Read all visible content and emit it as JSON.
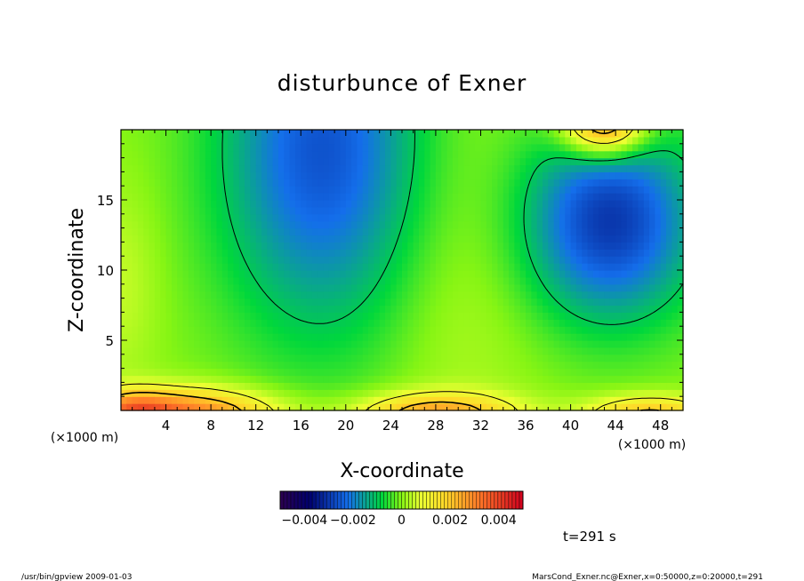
{
  "chart_data": {
    "type": "heatmap",
    "title": "disturbunce of Exner",
    "xlabel": "X-coordinate",
    "ylabel": "Z-coordinate",
    "x_unit": "(×1000 m)",
    "z_unit": "(×1000 m)",
    "xlim": [
      0,
      50
    ],
    "ylim": [
      0,
      20
    ],
    "x_ticks": [
      4,
      8,
      12,
      16,
      20,
      24,
      28,
      32,
      36,
      40,
      44,
      48
    ],
    "y_ticks": [
      5,
      10,
      15
    ],
    "colorbar": {
      "range": [
        -0.005,
        0.005
      ],
      "tick_values": [
        -0.004,
        -0.002,
        0,
        0.002,
        0.004
      ],
      "tick_labels": [
        "−0.004",
        "−0.002",
        "0",
        "0.002",
        "0.004"
      ]
    },
    "contour_levels": [
      -0.001,
      0.001,
      0.002
    ],
    "features": [
      {
        "kind": "negative-lobe",
        "x": 18,
        "z": 18.5,
        "peak": -0.0026
      },
      {
        "kind": "negative-lobe",
        "x": 43.5,
        "z": 13.5,
        "peak": -0.003
      },
      {
        "kind": "positive-lobe",
        "x": 43,
        "z": 20,
        "peak": 0.0032
      },
      {
        "kind": "positive-lobe",
        "x": 6,
        "z": 0,
        "peak": 0.0032
      },
      {
        "kind": "positive-lobe",
        "x": 28,
        "z": 0,
        "peak": 0.0025
      },
      {
        "kind": "positive-lobe",
        "x": 47,
        "z": 0,
        "peak": 0.0022
      }
    ],
    "time_label": "t=291 s"
  },
  "footer": {
    "left": "/usr/bin/gpview   2009-01-03",
    "right": "MarsCond_Exner.nc@Exner,x=0:50000,z=0:20000,t=291"
  }
}
